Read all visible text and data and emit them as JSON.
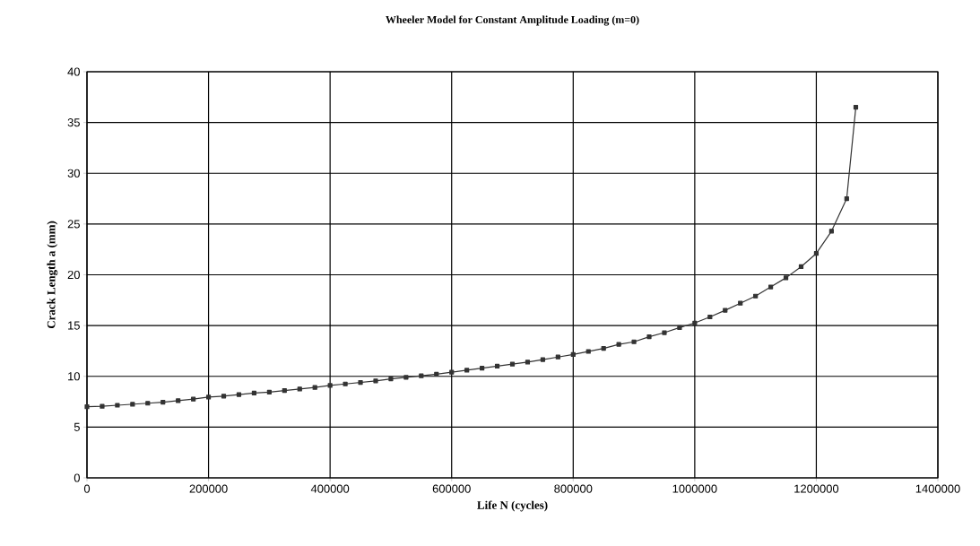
{
  "chart_data": {
    "type": "line",
    "title": "Wheeler Model for Constant Amplitude Loading (m=0)",
    "xlabel": "Life N (cycles)",
    "ylabel": "Crack Length a (mm)",
    "xlim": [
      0,
      1400000
    ],
    "ylim": [
      0,
      40
    ],
    "xticks": [
      0,
      200000,
      400000,
      600000,
      800000,
      1000000,
      1200000,
      1400000
    ],
    "yticks": [
      0,
      5,
      10,
      15,
      20,
      25,
      30,
      35,
      40
    ],
    "grid": true,
    "marker": "square",
    "line_style": "solid",
    "series": [
      {
        "color": "#333333",
        "x": [
          0,
          25000,
          50000,
          75000,
          100000,
          125000,
          150000,
          175000,
          200000,
          225000,
          250000,
          275000,
          300000,
          325000,
          350000,
          375000,
          400000,
          425000,
          450000,
          475000,
          500000,
          525000,
          550000,
          575000,
          600000,
          625000,
          650000,
          675000,
          700000,
          725000,
          750000,
          775000,
          800000,
          825000,
          850000,
          875000,
          900000,
          925000,
          950000,
          975000,
          1000000,
          1025000,
          1050000,
          1075000,
          1100000,
          1125000,
          1150000,
          1175000,
          1200000,
          1225000,
          1250000,
          1265000
        ],
        "values": [
          7.0,
          7.05,
          7.15,
          7.25,
          7.35,
          7.45,
          7.6,
          7.75,
          7.95,
          8.05,
          8.2,
          8.35,
          8.45,
          8.6,
          8.75,
          8.9,
          9.1,
          9.25,
          9.4,
          9.55,
          9.75,
          9.9,
          10.05,
          10.2,
          10.4,
          10.6,
          10.8,
          11.0,
          11.2,
          11.4,
          11.65,
          11.9,
          12.15,
          12.45,
          12.75,
          13.15,
          13.4,
          13.9,
          14.3,
          14.8,
          15.25,
          15.85,
          16.5,
          17.2,
          17.9,
          18.8,
          19.7,
          20.8,
          22.1,
          24.3,
          27.5,
          36.5
        ]
      }
    ]
  }
}
